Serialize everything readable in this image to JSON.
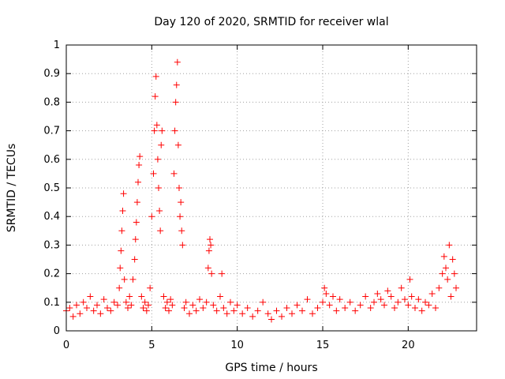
{
  "chart_data": {
    "type": "scatter",
    "title": "Day 120 of 2020, SRMTID for receiver wlal",
    "xlabel": "GPS time / hours",
    "ylabel": "SRMTID / TECUs",
    "xlim": [
      0,
      24
    ],
    "ylim": [
      0,
      1
    ],
    "grid": true,
    "marker": "+",
    "xticks": [
      0,
      5,
      10,
      15,
      20
    ],
    "xtick_labels": [
      "0",
      "5",
      "10",
      "15",
      "20"
    ],
    "yticks": [
      0,
      0.1,
      0.2,
      0.3,
      0.4,
      0.5,
      0.6,
      0.7,
      0.8,
      0.9,
      1
    ],
    "ytick_labels": [
      "0",
      "0.1",
      "0.2",
      "0.3",
      "0.4",
      "0.5",
      "0.6",
      "0.7",
      "0.8",
      "0.9",
      "1"
    ],
    "series": [
      {
        "name": "SRMTID",
        "color": "#ff0000",
        "x": [
          0.0,
          0.2,
          0.4,
          0.6,
          0.8,
          1.0,
          1.2,
          1.4,
          1.6,
          1.8,
          2.0,
          2.2,
          2.4,
          2.6,
          2.8,
          3.0,
          3.1,
          3.15,
          3.2,
          3.25,
          3.3,
          3.35,
          3.4,
          3.5,
          3.6,
          3.7,
          3.8,
          3.9,
          4.0,
          4.05,
          4.1,
          4.15,
          4.2,
          4.25,
          4.3,
          4.4,
          4.5,
          4.6,
          4.7,
          4.8,
          4.9,
          5.0,
          5.1,
          5.15,
          5.2,
          5.25,
          5.3,
          5.35,
          5.4,
          5.45,
          5.5,
          5.55,
          5.6,
          5.7,
          5.8,
          5.9,
          6.0,
          6.1,
          6.2,
          6.3,
          6.35,
          6.4,
          6.45,
          6.5,
          6.55,
          6.6,
          6.65,
          6.7,
          6.75,
          6.8,
          6.9,
          7.0,
          7.2,
          7.4,
          7.6,
          7.8,
          8.0,
          8.2,
          8.3,
          8.35,
          8.4,
          8.45,
          8.5,
          8.6,
          8.8,
          9.0,
          9.1,
          9.2,
          9.4,
          9.6,
          9.8,
          10.0,
          10.3,
          10.6,
          10.9,
          11.2,
          11.5,
          11.8,
          12.0,
          12.3,
          12.6,
          12.9,
          13.2,
          13.5,
          13.8,
          14.1,
          14.4,
          14.7,
          15.0,
          15.1,
          15.2,
          15.4,
          15.6,
          15.8,
          16.0,
          16.3,
          16.6,
          16.9,
          17.2,
          17.5,
          17.8,
          18.0,
          18.2,
          18.4,
          18.6,
          18.8,
          19.0,
          19.2,
          19.4,
          19.6,
          19.8,
          20.0,
          20.1,
          20.2,
          20.4,
          20.6,
          20.8,
          21.0,
          21.2,
          21.4,
          21.6,
          21.8,
          22.0,
          22.1,
          22.2,
          22.3,
          22.4,
          22.5,
          22.6,
          22.7,
          22.8
        ],
        "y": [
          0.07,
          0.08,
          0.05,
          0.09,
          0.06,
          0.1,
          0.08,
          0.12,
          0.07,
          0.09,
          0.06,
          0.11,
          0.08,
          0.07,
          0.1,
          0.09,
          0.15,
          0.22,
          0.28,
          0.35,
          0.42,
          0.48,
          0.18,
          0.1,
          0.08,
          0.12,
          0.09,
          0.18,
          0.25,
          0.32,
          0.38,
          0.45,
          0.52,
          0.58,
          0.61,
          0.12,
          0.08,
          0.1,
          0.07,
          0.09,
          0.15,
          0.4,
          0.55,
          0.7,
          0.82,
          0.89,
          0.72,
          0.6,
          0.5,
          0.42,
          0.35,
          0.65,
          0.7,
          0.12,
          0.08,
          0.1,
          0.07,
          0.11,
          0.09,
          0.55,
          0.7,
          0.8,
          0.86,
          0.94,
          0.65,
          0.5,
          0.4,
          0.45,
          0.35,
          0.3,
          0.08,
          0.1,
          0.06,
          0.09,
          0.07,
          0.11,
          0.08,
          0.1,
          0.22,
          0.28,
          0.32,
          0.3,
          0.2,
          0.09,
          0.07,
          0.12,
          0.2,
          0.08,
          0.06,
          0.1,
          0.07,
          0.09,
          0.06,
          0.08,
          0.05,
          0.07,
          0.1,
          0.06,
          0.04,
          0.07,
          0.05,
          0.08,
          0.06,
          0.09,
          0.07,
          0.11,
          0.06,
          0.08,
          0.1,
          0.15,
          0.13,
          0.09,
          0.12,
          0.07,
          0.11,
          0.08,
          0.1,
          0.07,
          0.09,
          0.12,
          0.08,
          0.1,
          0.13,
          0.11,
          0.09,
          0.14,
          0.12,
          0.08,
          0.1,
          0.15,
          0.11,
          0.09,
          0.18,
          0.12,
          0.08,
          0.11,
          0.07,
          0.1,
          0.09,
          0.13,
          0.08,
          0.15,
          0.2,
          0.26,
          0.22,
          0.18,
          0.3,
          0.12,
          0.25,
          0.2,
          0.15
        ]
      }
    ]
  }
}
